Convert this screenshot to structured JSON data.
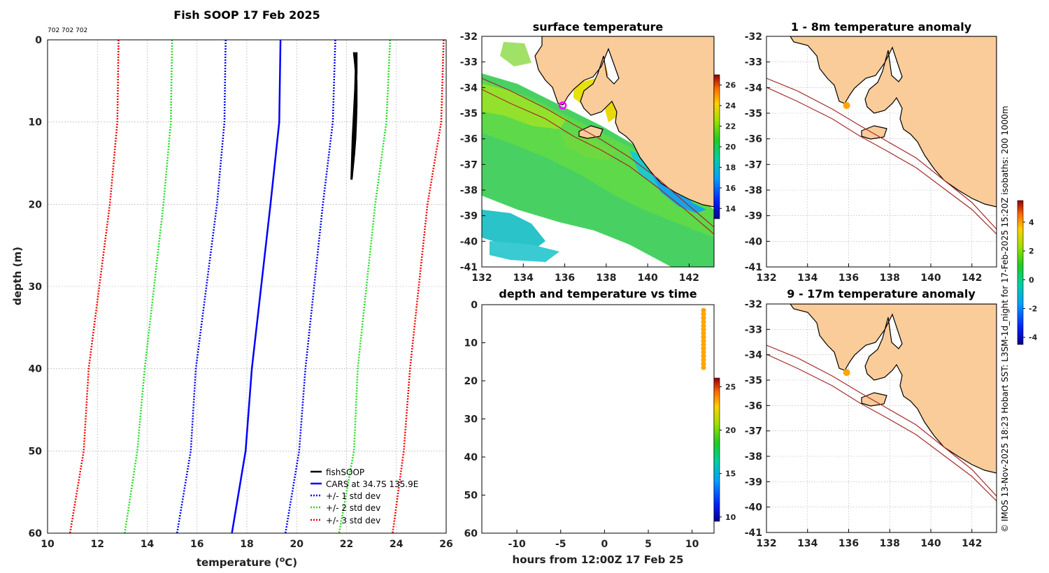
{
  "footer": {
    "credit": "© IMOS 13-Nov-2025 18:23 Hobart SST: L3SM-1d_night for 17-Feb-2025 15:20Z isobaths: 200  1000m"
  },
  "colors": {
    "land": "#f9cc9a",
    "coast": "#000000",
    "isobath": "#a52a2a",
    "cars": "#0000ff",
    "std1": "#0000ff",
    "std2": "#22dd22",
    "std3": "#ff0000",
    "marker": "#ffa500",
    "ring": "#ff00ff"
  },
  "chart_data": [
    {
      "id": "profile",
      "type": "line",
      "title": "Fish SOOP 17 Feb 2025",
      "annotation": "702 702 702",
      "xlabel": "temperature (°C)",
      "xlabel_parts": {
        "pre": "temperature (",
        "sup": "o",
        "post": "C)"
      },
      "ylabel": "depth (m)",
      "xlim": [
        10,
        26
      ],
      "ylim": [
        0,
        60
      ],
      "y_inverted": true,
      "grid": true,
      "xticks": [
        "10",
        "12",
        "14",
        "16",
        "18",
        "20",
        "22",
        "24",
        "26"
      ],
      "yticks": [
        "0",
        "10",
        "20",
        "30",
        "40",
        "50",
        "60"
      ],
      "legend_position": "bottom-right",
      "legend": [
        "fishSOOP",
        "CARS at 34.7S 135.9E",
        "+/- 1 std dev",
        "+/- 2 std dev",
        "+/- 3 std dev"
      ],
      "cars_depth": [
        0,
        10,
        20,
        40,
        50,
        60
      ],
      "series": [
        {
          "name": "fishSOOP",
          "style": "solid-black",
          "x": [
            22.3,
            22.35,
            22.4,
            22.4,
            22.38,
            22.35,
            22.3,
            22.25,
            22.2,
            22.22,
            22.25,
            22.3,
            22.35,
            22.38,
            22.4,
            22.4,
            22.35,
            22.3,
            22.25,
            22.22,
            22.2
          ],
          "y": [
            1.5,
            3,
            5,
            8,
            10,
            12,
            14,
            15.5,
            17,
            15,
            12,
            9,
            6,
            3,
            1.5,
            4,
            8,
            12,
            15,
            16.5,
            17
          ]
        },
        {
          "name": "CARS at 34.7S 135.9E",
          "style": "solid-blue",
          "x": [
            19.35,
            19.3,
            18.95,
            18.2,
            17.95,
            17.4
          ]
        },
        {
          "name": "+1 std",
          "style": "dot-blue",
          "x": [
            21.55,
            21.45,
            21.05,
            20.35,
            20.1,
            19.55
          ]
        },
        {
          "name": "-1 std",
          "style": "dot-blue",
          "x": [
            17.15,
            17.1,
            16.8,
            15.95,
            15.75,
            15.2
          ]
        },
        {
          "name": "+2 std",
          "style": "dot-green",
          "x": [
            23.75,
            23.6,
            23.15,
            22.45,
            22.3,
            21.7
          ]
        },
        {
          "name": "-2 std",
          "style": "dot-green",
          "x": [
            15.0,
            14.95,
            14.65,
            13.9,
            13.6,
            13.1
          ]
        },
        {
          "name": "+3 std",
          "style": "dot-red",
          "x": [
            25.9,
            25.8,
            25.25,
            24.55,
            24.3,
            23.85
          ]
        },
        {
          "name": "-3 std",
          "style": "dot-red",
          "x": [
            12.85,
            12.8,
            12.5,
            11.65,
            11.45,
            10.9
          ]
        }
      ]
    },
    {
      "id": "sst",
      "type": "heatmap",
      "title": "surface temperature",
      "xlim": [
        132,
        143.2
      ],
      "ylim": [
        -41,
        -32
      ],
      "grid": false,
      "xticks": [
        "132",
        "134",
        "136",
        "138",
        "140",
        "142"
      ],
      "yticks": [
        "-32",
        "-33",
        "-34",
        "-35",
        "-36",
        "-37",
        "-38",
        "-39",
        "-40",
        "-41"
      ],
      "colorbar": {
        "min": 13,
        "max": 27,
        "ticks": [
          "14",
          "16",
          "18",
          "20",
          "22",
          "24",
          "26"
        ]
      },
      "station": {
        "lon": 135.9,
        "lat": -34.7
      }
    },
    {
      "id": "depthtime",
      "type": "scatter",
      "title": "depth and temperature vs time",
      "xlabel": "hours from 12:00Z 17 Feb 25",
      "xlim": [
        -14,
        12.5
      ],
      "ylim": [
        0,
        60
      ],
      "y_inverted": true,
      "xticks": [
        "-10",
        "-5",
        "0",
        "5",
        "10"
      ],
      "yticks": [
        "0",
        "10",
        "20",
        "30",
        "40",
        "50",
        "60"
      ],
      "colorbar": {
        "min": 9.5,
        "max": 26,
        "ticks": [
          "10",
          "15",
          "20",
          "25"
        ]
      },
      "points": {
        "hour": 11.3,
        "depths": [
          1.5,
          2.5,
          3.5,
          4.5,
          5.5,
          6.5,
          7.5,
          8.5,
          9.5,
          10.5,
          11.5,
          12.5,
          13.5,
          14.5,
          15.5,
          16.5
        ]
      }
    },
    {
      "id": "anom1",
      "type": "heatmap",
      "title": "1 - 8m temperature anomaly",
      "xlim": [
        132,
        143.2
      ],
      "ylim": [
        -41,
        -32
      ],
      "grid": true,
      "xticks": [
        "132",
        "134",
        "136",
        "138",
        "140",
        "142"
      ],
      "yticks": [
        "-32",
        "-33",
        "-34",
        "-35",
        "-36",
        "-37",
        "-38",
        "-39",
        "-40",
        "-41"
      ],
      "station": {
        "lon": 135.9,
        "lat": -34.7
      }
    },
    {
      "id": "anom2",
      "type": "heatmap",
      "title": "9 - 17m temperature anomaly",
      "xlim": [
        132,
        143.2
      ],
      "ylim": [
        -41,
        -32
      ],
      "grid": true,
      "xticks": [
        "132",
        "134",
        "136",
        "138",
        "140",
        "142"
      ],
      "yticks": [
        "-32",
        "-33",
        "-34",
        "-35",
        "-36",
        "-37",
        "-38",
        "-39",
        "-40",
        "-41"
      ],
      "station": {
        "lon": 135.9,
        "lat": -34.7
      }
    },
    {
      "id": "anomcb",
      "type": "heatmap",
      "colorbar": {
        "min": -4.5,
        "max": 5.5,
        "ticks": [
          "-4",
          "-2",
          "0",
          "2",
          "4"
        ]
      }
    }
  ]
}
